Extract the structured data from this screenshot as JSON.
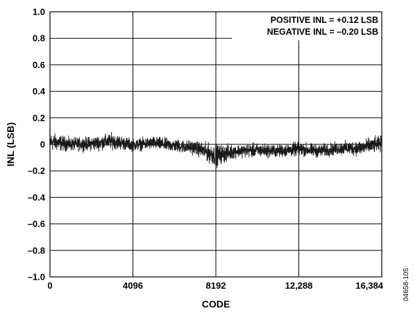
{
  "chart_data": {
    "type": "line",
    "title": "",
    "xlabel": "CODE",
    "ylabel": "INL (LSB)",
    "xlim": [
      0,
      16384
    ],
    "ylim": [
      -1.0,
      1.0
    ],
    "x_ticks": [
      0,
      4096,
      8192,
      12288,
      16384
    ],
    "x_tick_labels": [
      "0",
      "4096",
      "8192",
      "12,288",
      "16,384"
    ],
    "y_ticks": [
      -1.0,
      -0.8,
      -0.6,
      -0.4,
      -0.2,
      0,
      0.2,
      0.4,
      0.6,
      0.8,
      1.0
    ],
    "y_tick_labels": [
      "–1.0",
      "–0.8",
      "–0.6",
      "–0.4",
      "–0.2",
      "0",
      "0.2",
      "0.4",
      "0.6",
      "0.8",
      "1.0"
    ],
    "grid": true,
    "annotations": [
      "POSITIVE INL = +0.12 LSB",
      "NEGATIVE INL = –0.20 LSB"
    ],
    "figure_id": "04658-105",
    "series": [
      {
        "color": "#1a1a1a",
        "x": [
          0,
          1024,
          2048,
          3072,
          4096,
          5120,
          6144,
          7168,
          8192,
          9216,
          10240,
          11264,
          12288,
          13312,
          14336,
          15360,
          16384
        ],
        "y": [
          0.02,
          0.0,
          0.01,
          0.02,
          0.0,
          0.01,
          0.0,
          -0.02,
          -0.04,
          -0.05,
          -0.04,
          -0.05,
          -0.04,
          -0.04,
          -0.03,
          -0.02,
          -0.01
        ],
        "upper": [
          0.12,
          0.07,
          0.08,
          0.11,
          0.06,
          0.08,
          0.06,
          0.05,
          0.03,
          0.02,
          0.03,
          0.02,
          0.04,
          0.02,
          0.04,
          0.06,
          0.09
        ],
        "lower": [
          -0.08,
          -0.07,
          -0.07,
          -0.06,
          -0.07,
          -0.06,
          -0.08,
          -0.1,
          -0.2,
          -0.12,
          -0.12,
          -0.12,
          -0.11,
          -0.12,
          -0.1,
          -0.11,
          -0.08
        ]
      }
    ]
  }
}
